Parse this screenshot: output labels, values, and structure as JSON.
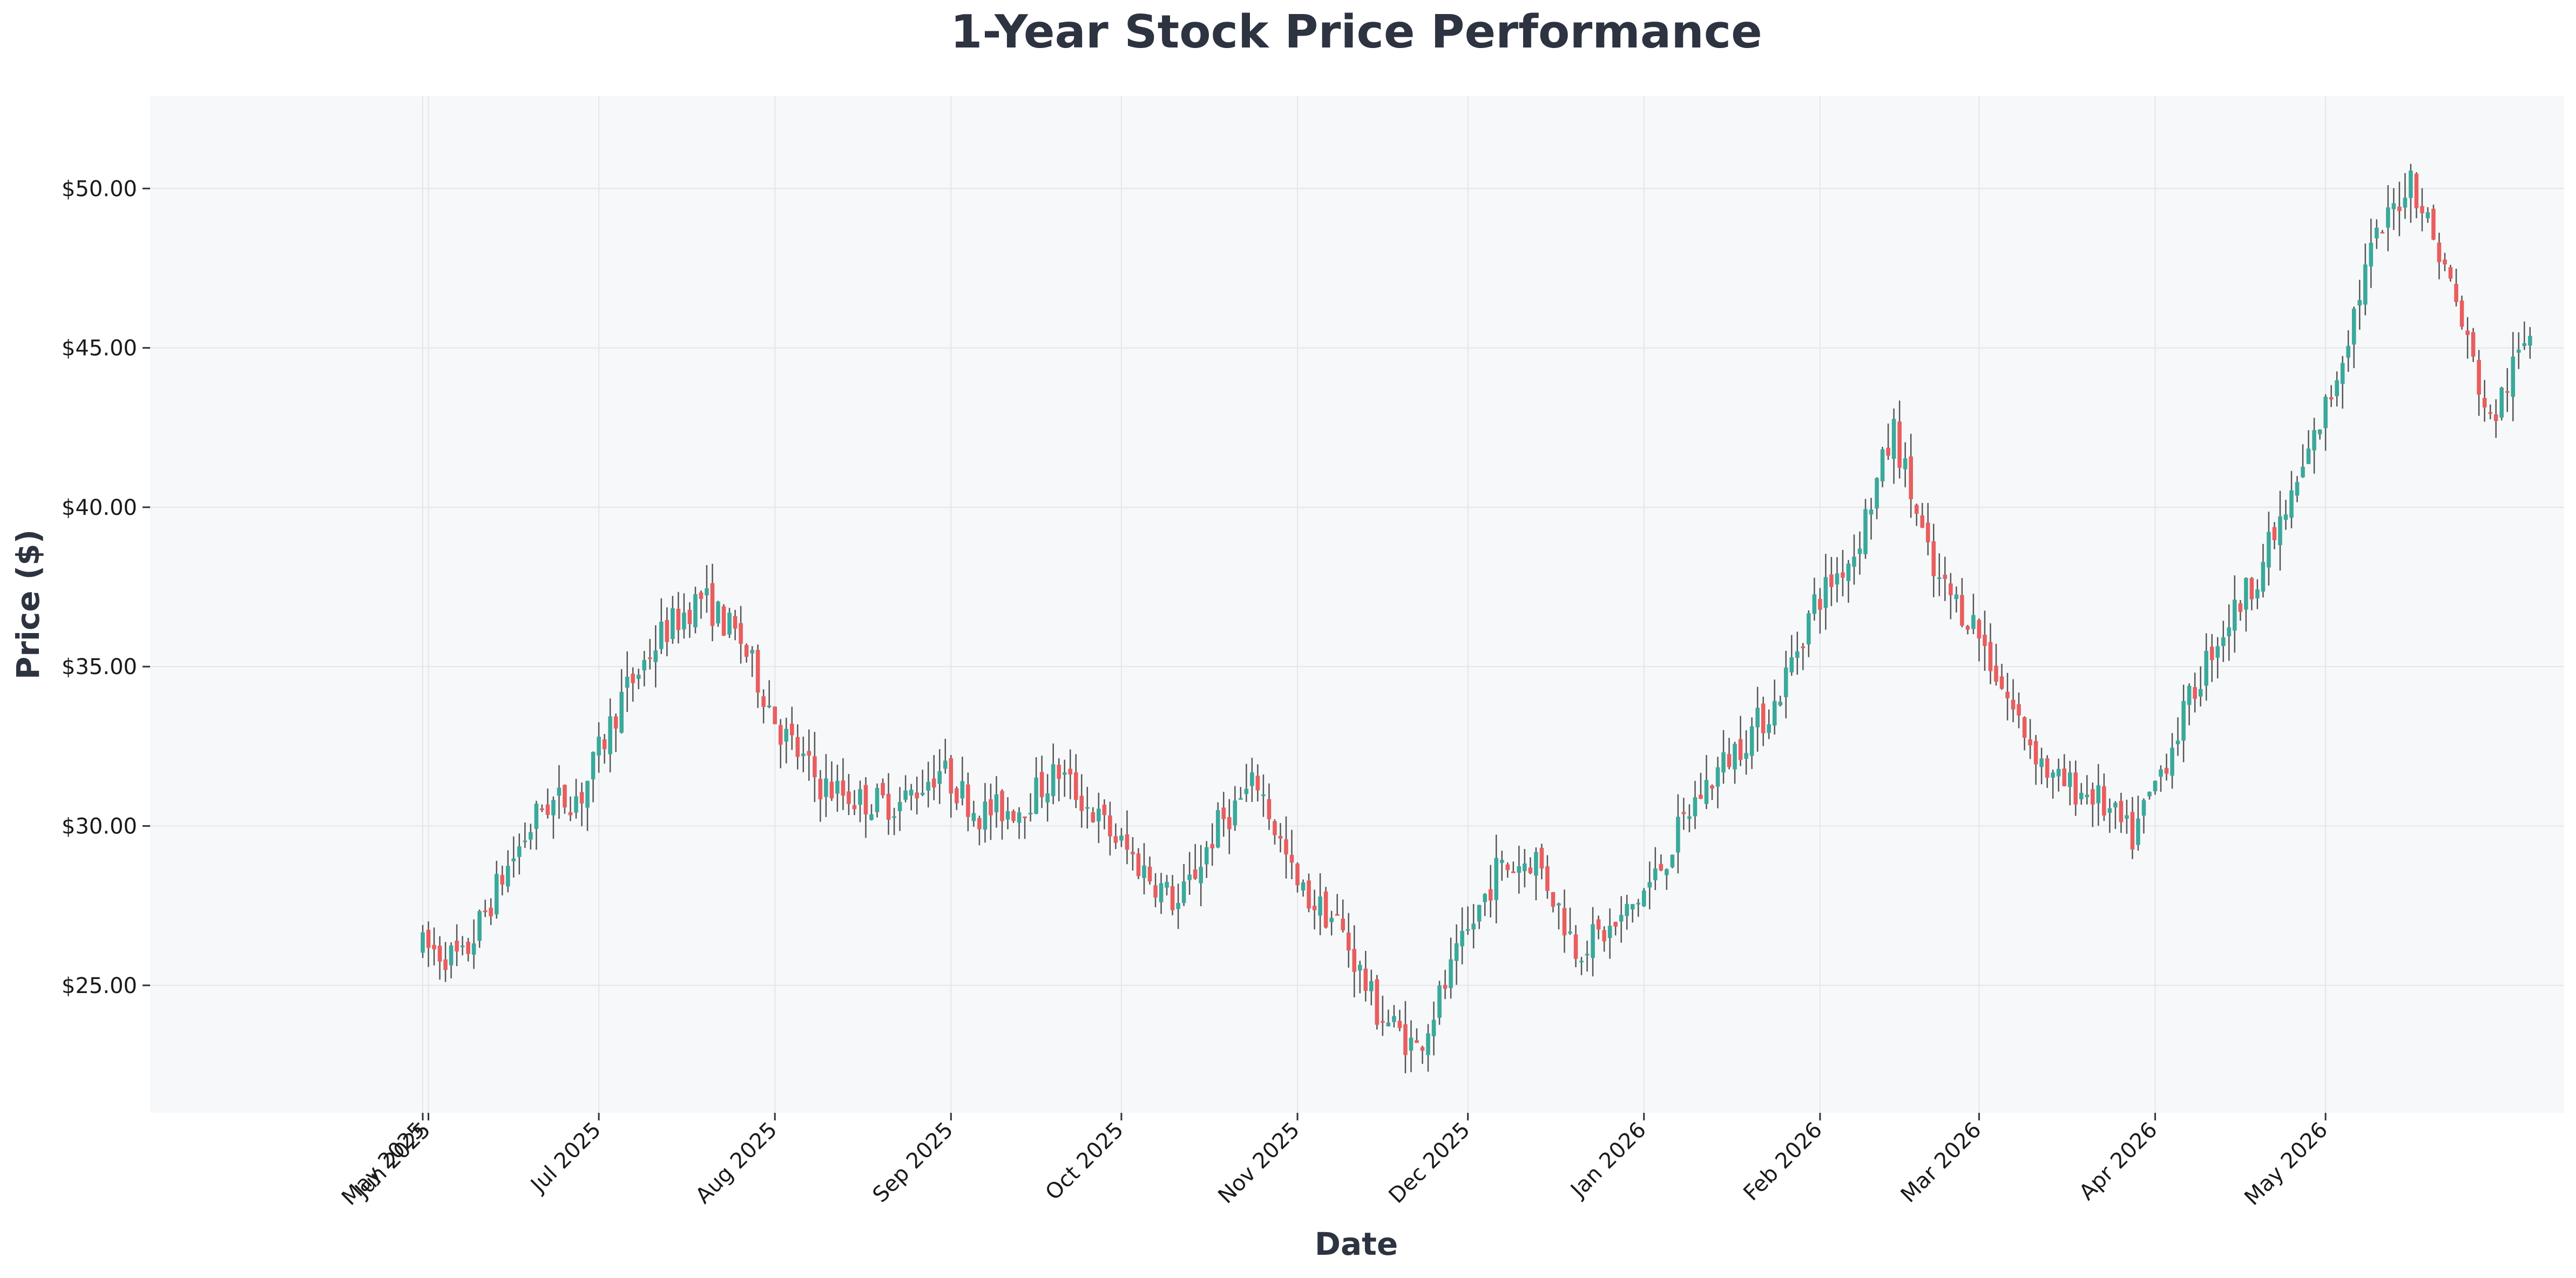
{
  "colors": {
    "up": "#3aa99b",
    "down": "#ea5d5e",
    "wick": "#555555",
    "plot_bg": "#f6f8fa",
    "grid": "#e4e6ea",
    "text": "#2d3340"
  },
  "chart_data": {
    "type": "candlestick",
    "title": "1-Year Stock Price Performance",
    "xlabel": "Date",
    "ylabel": "Price ($)",
    "ylim": [
      21.0,
      52.9
    ],
    "xlim": [
      "2025-04-13",
      "2026-06-12"
    ],
    "y_ticks": [
      {
        "value": 25,
        "label": "$25.00"
      },
      {
        "value": 30,
        "label": "$30.00"
      },
      {
        "value": 35,
        "label": "$35.00"
      },
      {
        "value": 40,
        "label": "$40.00"
      },
      {
        "value": 45,
        "label": "$45.00"
      },
      {
        "value": 50,
        "label": "$50.00"
      }
    ],
    "x_ticks": [
      {
        "date": "2025-05-31",
        "label": "May 2025"
      },
      {
        "date": "2025-06-01",
        "label": "Jun 2025"
      },
      {
        "date": "2025-07-01",
        "label": "Jul 2025"
      },
      {
        "date": "2025-08-01",
        "label": "Aug 2025"
      },
      {
        "date": "2025-09-01",
        "label": "Sep 2025"
      },
      {
        "date": "2025-10-01",
        "label": "Oct 2025"
      },
      {
        "date": "2025-11-01",
        "label": "Nov 2025"
      },
      {
        "date": "2025-12-01",
        "label": "Dec 2025"
      },
      {
        "date": "2026-01-01",
        "label": "Jan 2026"
      },
      {
        "date": "2026-02-01",
        "label": "Feb 2026"
      },
      {
        "date": "2026-03-01",
        "label": "Mar 2026"
      },
      {
        "date": "2026-04-01",
        "label": "Apr 2026"
      },
      {
        "date": "2026-05-01",
        "label": "May 2026"
      }
    ],
    "grid": true,
    "ohlc_points": [
      {
        "date": "2025-05-31",
        "price": 26.2
      },
      {
        "date": "2025-06-07",
        "price": 25.8
      },
      {
        "date": "2025-06-14",
        "price": 28.4
      },
      {
        "date": "2025-06-21",
        "price": 30.6
      },
      {
        "date": "2025-06-28",
        "price": 31.0
      },
      {
        "date": "2025-07-05",
        "price": 34.0
      },
      {
        "date": "2025-07-12",
        "price": 36.0
      },
      {
        "date": "2025-07-19",
        "price": 37.2
      },
      {
        "date": "2025-07-26",
        "price": 35.8
      },
      {
        "date": "2025-08-02",
        "price": 33.0
      },
      {
        "date": "2025-08-09",
        "price": 31.3
      },
      {
        "date": "2025-08-16",
        "price": 30.8
      },
      {
        "date": "2025-08-23",
        "price": 30.7
      },
      {
        "date": "2025-08-30",
        "price": 31.8
      },
      {
        "date": "2025-09-06",
        "price": 30.4
      },
      {
        "date": "2025-09-13",
        "price": 30.6
      },
      {
        "date": "2025-09-20",
        "price": 31.7
      },
      {
        "date": "2025-09-27",
        "price": 30.2
      },
      {
        "date": "2025-10-04",
        "price": 28.8
      },
      {
        "date": "2025-10-11",
        "price": 27.5
      },
      {
        "date": "2025-10-18",
        "price": 30.0
      },
      {
        "date": "2025-10-25",
        "price": 31.4
      },
      {
        "date": "2025-11-01",
        "price": 28.0
      },
      {
        "date": "2025-11-08",
        "price": 27.0
      },
      {
        "date": "2025-11-15",
        "price": 24.2
      },
      {
        "date": "2025-11-22",
        "price": 23.0
      },
      {
        "date": "2025-11-29",
        "price": 25.8
      },
      {
        "date": "2025-12-06",
        "price": 28.6
      },
      {
        "date": "2025-12-13",
        "price": 29.0
      },
      {
        "date": "2025-12-20",
        "price": 26.2
      },
      {
        "date": "2025-12-27",
        "price": 26.8
      },
      {
        "date": "2026-01-03",
        "price": 28.4
      },
      {
        "date": "2026-01-10",
        "price": 30.8
      },
      {
        "date": "2026-01-17",
        "price": 32.4
      },
      {
        "date": "2026-01-24",
        "price": 33.8
      },
      {
        "date": "2026-01-31",
        "price": 37.0
      },
      {
        "date": "2026-02-07",
        "price": 38.6
      },
      {
        "date": "2026-02-14",
        "price": 42.4
      },
      {
        "date": "2026-02-21",
        "price": 37.8
      },
      {
        "date": "2026-02-28",
        "price": 36.4
      },
      {
        "date": "2026-03-07",
        "price": 33.6
      },
      {
        "date": "2026-03-14",
        "price": 31.4
      },
      {
        "date": "2026-03-21",
        "price": 31.0
      },
      {
        "date": "2026-03-28",
        "price": 29.6
      },
      {
        "date": "2026-04-04",
        "price": 32.6
      },
      {
        "date": "2026-04-11",
        "price": 35.6
      },
      {
        "date": "2026-04-18",
        "price": 37.6
      },
      {
        "date": "2026-04-25",
        "price": 40.2
      },
      {
        "date": "2026-05-02",
        "price": 43.6
      },
      {
        "date": "2026-05-09",
        "price": 48.0
      },
      {
        "date": "2026-05-16",
        "price": 50.4
      },
      {
        "date": "2026-05-23",
        "price": 47.0
      },
      {
        "date": "2026-05-30",
        "price": 42.6
      },
      {
        "date": "2026-06-06",
        "price": 45.6
      }
    ]
  }
}
